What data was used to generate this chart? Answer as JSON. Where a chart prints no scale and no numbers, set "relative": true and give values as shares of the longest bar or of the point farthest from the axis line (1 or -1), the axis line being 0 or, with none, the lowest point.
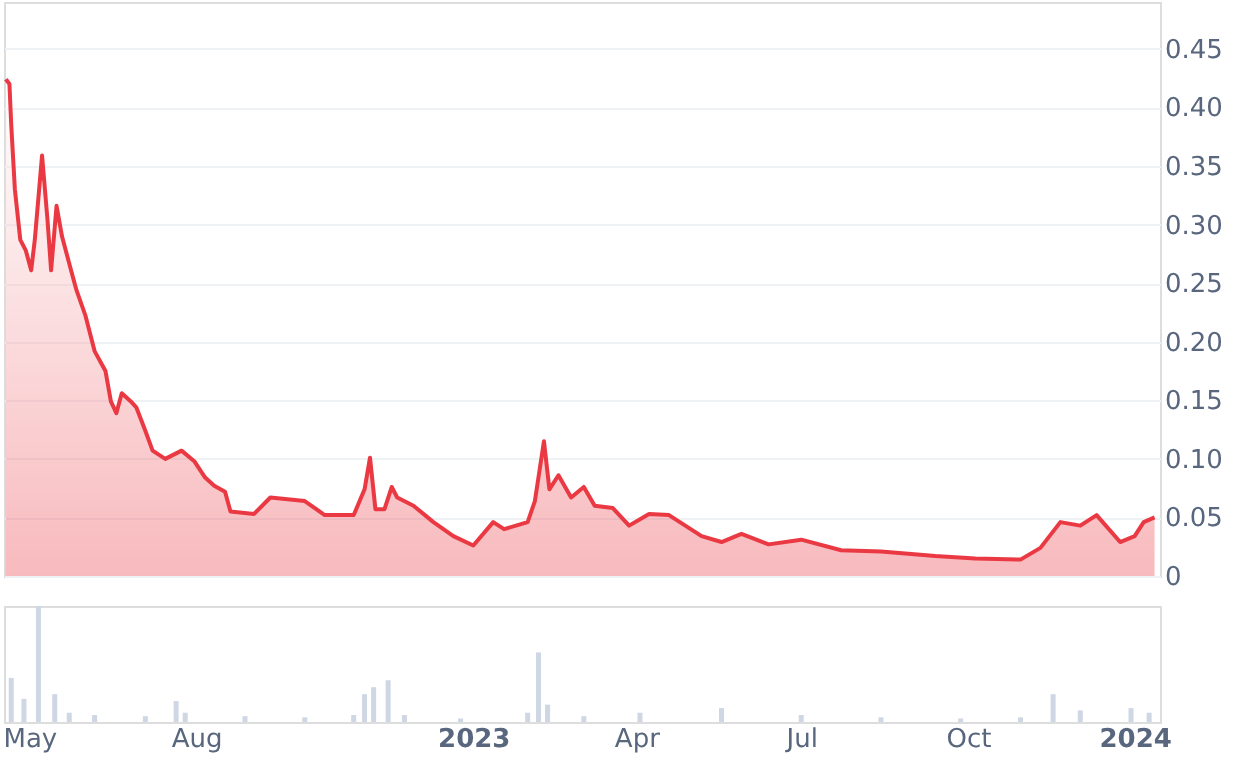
{
  "chart_data": [
    {
      "type": "area",
      "x": [
        "2022-04-18",
        "2022-04-20",
        "2022-04-21",
        "2022-04-23",
        "2022-04-26",
        "2022-04-29",
        "2022-05-02",
        "2022-05-04",
        "2022-05-08",
        "2022-05-11",
        "2022-05-13",
        "2022-05-16",
        "2022-05-19",
        "2022-05-24",
        "2022-05-27",
        "2022-06-01",
        "2022-06-06",
        "2022-06-12",
        "2022-06-15",
        "2022-06-18",
        "2022-06-21",
        "2022-06-26",
        "2022-06-29",
        "2022-07-04",
        "2022-07-08",
        "2022-07-15",
        "2022-07-24",
        "2022-07-31",
        "2022-08-06",
        "2022-08-11",
        "2022-08-17",
        "2022-08-20",
        "2022-09-02",
        "2022-09-11",
        "2022-09-30",
        "2022-10-11",
        "2022-10-27",
        "2022-11-02",
        "2022-11-05",
        "2022-11-08",
        "2022-11-13",
        "2022-11-17",
        "2022-11-20",
        "2022-11-29",
        "2022-12-10",
        "2022-12-21",
        "2023-01-01",
        "2023-01-12",
        "2023-01-18",
        "2023-01-31",
        "2023-02-04",
        "2023-02-09",
        "2023-02-12",
        "2023-02-17",
        "2023-02-24",
        "2023-03-03",
        "2023-03-09",
        "2023-03-19",
        "2023-03-28",
        "2023-04-08",
        "2023-04-19",
        "2023-05-07",
        "2023-05-18",
        "2023-05-29",
        "2023-06-13",
        "2023-07-01",
        "2023-07-23",
        "2023-08-14",
        "2023-09-13",
        "2023-10-05",
        "2023-10-30",
        "2023-11-10",
        "2023-11-21",
        "2023-12-02",
        "2023-12-11",
        "2023-12-24",
        "2024-01-01",
        "2024-01-06",
        "2024-01-12"
      ],
      "series": [
        {
          "color": "#ea3943",
          "values": [
            0.424,
            0.42,
            0.385,
            0.33,
            0.287,
            0.278,
            0.261,
            0.287,
            0.359,
            0.304,
            0.261,
            0.316,
            0.29,
            0.261,
            0.244,
            0.222,
            0.192,
            0.175,
            0.149,
            0.139,
            0.156,
            0.149,
            0.144,
            0.124,
            0.107,
            0.1,
            0.107,
            0.098,
            0.084,
            0.077,
            0.072,
            0.055,
            0.053,
            0.067,
            0.064,
            0.052,
            0.052,
            0.074,
            0.101,
            0.057,
            0.057,
            0.076,
            0.067,
            0.06,
            0.046,
            0.034,
            0.026,
            0.046,
            0.04,
            0.046,
            0.064,
            0.115,
            0.074,
            0.086,
            0.067,
            0.076,
            0.06,
            0.058,
            0.043,
            0.053,
            0.052,
            0.034,
            0.029,
            0.036,
            0.027,
            0.031,
            0.022,
            0.021,
            0.017,
            0.015,
            0.014,
            0.024,
            0.046,
            0.043,
            0.052,
            0.029,
            0.034,
            0.046,
            0.05
          ]
        }
      ],
      "xlim": [
        "2022-04-17",
        "2024-01-15"
      ],
      "ylim": [
        0,
        0.49
      ],
      "yticks": [
        0,
        0.05,
        {
          "value": 0.1,
          "label": "0.10"
        },
        0.15,
        {
          "value": 0.2,
          "label": "0.20"
        },
        0.25,
        {
          "value": 0.3,
          "label": "0.30"
        },
        0.35,
        {
          "value": 0.4,
          "label": "0.40"
        },
        0.45
      ],
      "grid": "y",
      "tick_labels": "y"
    },
    {
      "type": "bar",
      "relative": true,
      "x": [
        "2022-04-21",
        "2022-04-28",
        "2022-05-06",
        "2022-05-15",
        "2022-05-23",
        "2022-06-06",
        "2022-07-04",
        "2022-07-21",
        "2022-07-26",
        "2022-08-28",
        "2022-09-30",
        "2022-10-27",
        "2022-11-02",
        "2022-11-07",
        "2022-11-15",
        "2022-11-24",
        "2022-12-25",
        "2023-01-31",
        "2023-02-06",
        "2023-02-11",
        "2023-03-03",
        "2023-04-03",
        "2023-05-18",
        "2023-07-01",
        "2023-08-14",
        "2023-09-27",
        "2023-10-30",
        "2023-11-17",
        "2023-12-02",
        "2023-12-30",
        "2024-01-09"
      ],
      "series": [
        {
          "color": "#cfd6e4",
          "values": [
            0.38,
            0.2,
            1,
            0.24,
            0.08,
            0.06,
            0.05,
            0.18,
            0.08,
            0.05,
            0.04,
            0.06,
            0.24,
            0.3,
            0.36,
            0.06,
            0.03,
            0.08,
            0.6,
            0.15,
            0.05,
            0.08,
            0.12,
            0.06,
            0.04,
            0.03,
            0.04,
            0.24,
            0.1,
            0.12,
            0.08
          ]
        }
      ],
      "xlim": [
        "2022-04-17",
        "2024-01-15"
      ],
      "xticks": [
        {
          "value": "2022-05-01",
          "label": "May"
        },
        {
          "value": "2022-08-01",
          "label": "Aug"
        },
        {
          "value": "2023-01-01",
          "label": "2023"
        },
        {
          "value": "2023-04-01",
          "label": "Apr"
        },
        {
          "value": "2023-07-01",
          "label": "Jul"
        },
        {
          "value": "2023-10-01",
          "label": "Oct"
        },
        {
          "value": "2024-01-01",
          "label": "2024"
        }
      ],
      "grid": false,
      "tick_labels": "x"
    }
  ]
}
